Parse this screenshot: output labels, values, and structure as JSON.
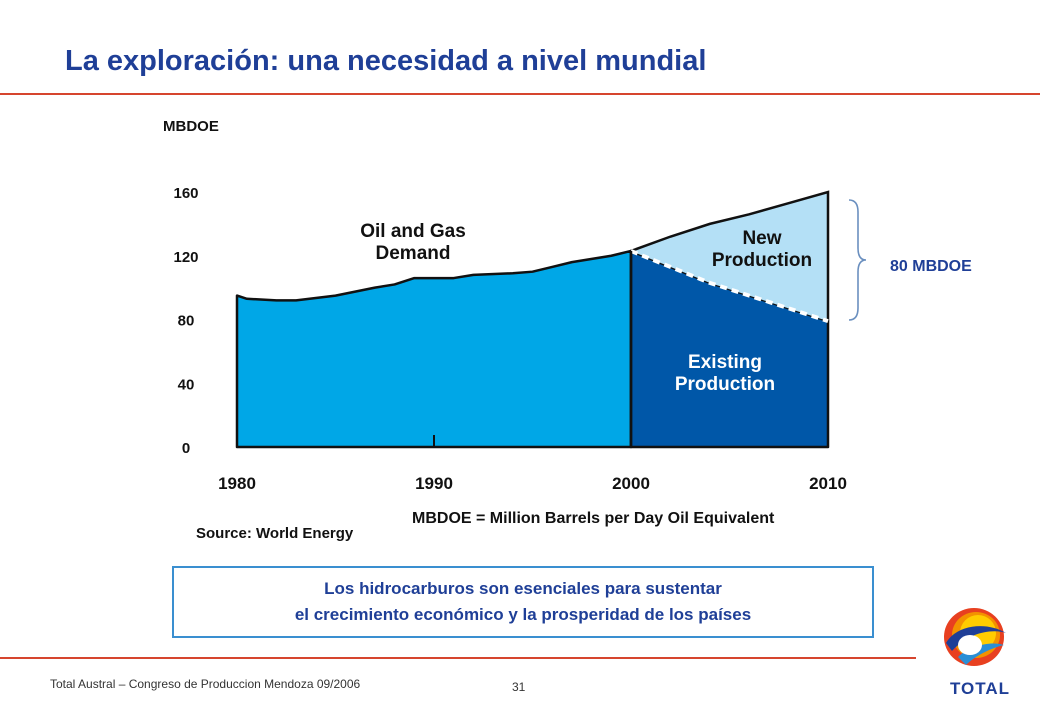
{
  "slide": {
    "title": "La exploración: una necesidad a nivel mundial",
    "brace_label": "80 MBDOE",
    "source": "Source: World Energy",
    "message_line1": "Los hidrocarburos son esenciales para sustentar",
    "message_line2": "el crecimiento económico y la prosperidad de los países",
    "footer": "Total Austral – Congreso de Produccion Mendoza 09/2006",
    "page_number": "31",
    "logo_text": "TOTAL"
  },
  "colors": {
    "title": "#1f3f97",
    "rule": "#d6452e",
    "demand_fill": "#00a7e7",
    "existing_fill": "#0057a8",
    "new_fill": "#b4e0f6"
  },
  "chart_data": {
    "type": "area",
    "ylabel": "MBDOE",
    "y_ticks": [
      "160",
      "120",
      "80",
      "40",
      "0"
    ],
    "x_ticks": [
      "1980",
      "1990",
      "2000",
      "2010"
    ],
    "ylim": [
      0,
      160
    ],
    "xlim": [
      1980,
      2010
    ],
    "footnote": "MBDOE = Million Barrels per Day Oil Equivalent",
    "annotations": [
      "Oil and Gas",
      "Demand",
      "New",
      "Production",
      "Existing",
      "Production"
    ],
    "series": [
      {
        "name": "Oil and Gas Demand",
        "x": [
          1980,
          1980.5,
          1982,
          1983,
          1985,
          1987,
          1988,
          1989,
          1991,
          1992,
          1994,
          1995,
          1996,
          1997,
          1999,
          2000
        ],
        "values": [
          95,
          93,
          92,
          92,
          95,
          100,
          102,
          106,
          106,
          108,
          109,
          110,
          113,
          116,
          120,
          123
        ]
      },
      {
        "name": "Existing Production",
        "x": [
          2000,
          2002,
          2004,
          2006,
          2008,
          2010
        ],
        "values": [
          123,
          113,
          103,
          95,
          87,
          79
        ]
      },
      {
        "name": "New Production",
        "x": [
          2000,
          2002,
          2004,
          2006,
          2008,
          2010
        ],
        "values": [
          123,
          132,
          140,
          146,
          153,
          160
        ]
      }
    ]
  }
}
